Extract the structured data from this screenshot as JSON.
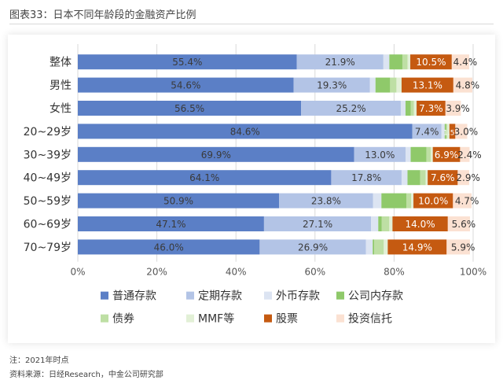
{
  "figure_title": "图表33：日本不同年龄段的金融资产比例",
  "notes": {
    "note": "注：2021年时点",
    "source": "资料来源：日经Research，中金公司研究部"
  },
  "colors": {
    "普通存款": "#5B7FC6",
    "定期存款": "#B3C4E6",
    "外币存款": "#DCE4F2",
    "公司内存款": "#8FC96A",
    "债券": "#BEDFA4",
    "MMF等": "#E2F0D6",
    "股票": "#C55A11",
    "投资信托": "#FBE1D2"
  },
  "chart_data": {
    "type": "bar",
    "orientation": "horizontal",
    "stacked": true,
    "title": "",
    "categories": [
      "整体",
      "男性",
      "女性",
      "20~29岁",
      "30~39岁",
      "40~49岁",
      "50~59岁",
      "60~69岁",
      "70~79岁"
    ],
    "series": [
      {
        "name": "普通存款",
        "values": [
          55.4,
          54.6,
          56.5,
          84.6,
          69.9,
          64.1,
          50.9,
          47.1,
          46.0
        ]
      },
      {
        "name": "定期存款",
        "values": [
          21.9,
          19.3,
          25.2,
          7.4,
          13.0,
          17.8,
          23.8,
          27.1,
          26.9
        ]
      },
      {
        "name": "外币存款",
        "values": [
          1.5,
          1.4,
          1.2,
          0.8,
          1.3,
          1.5,
          2.1,
          1.8,
          1.7
        ]
      },
      {
        "name": "公司内存款",
        "values": [
          3.3,
          3.7,
          1.3,
          0.4,
          4.0,
          3.2,
          6.3,
          0.9,
          0.4
        ]
      },
      {
        "name": "债券",
        "values": [
          1.3,
          1.6,
          0.8,
          0.3,
          1.1,
          1.4,
          1.2,
          1.9,
          2.4
        ]
      },
      {
        "name": "MMF等",
        "values": [
          0.7,
          1.3,
          0.7,
          0.5,
          0.5,
          0.5,
          0.6,
          0.8,
          1.0
        ]
      },
      {
        "name": "股票",
        "values": [
          10.5,
          13.1,
          7.3,
          1.5,
          6.9,
          7.6,
          10.0,
          14.0,
          14.9
        ]
      },
      {
        "name": "投资信托",
        "values": [
          4.4,
          4.8,
          3.9,
          3.0,
          2.4,
          2.9,
          4.7,
          5.6,
          5.9
        ]
      }
    ],
    "labeled_series": [
      "普通存款",
      "定期存款",
      "股票",
      "投资信托"
    ],
    "value_suffix": "%",
    "xlim": [
      0,
      100
    ],
    "xticks": [
      "0%",
      "20%",
      "40%",
      "60%",
      "80%",
      "100%"
    ],
    "grid": true,
    "legend_position": "bottom"
  }
}
